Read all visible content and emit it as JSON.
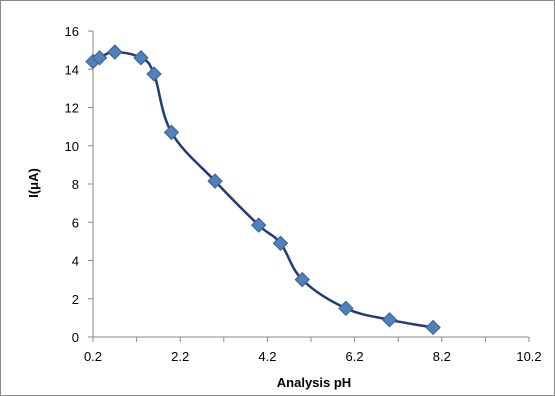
{
  "chart_data": {
    "type": "line",
    "title": "",
    "xlabel": "Analysis pH",
    "ylabel": "I(μA)",
    "xlim": [
      0.2,
      10.2
    ],
    "ylim": [
      0,
      16
    ],
    "xticks": [
      "0.2",
      "2.2",
      "4.2",
      "6.2",
      "8.2",
      "10.2"
    ],
    "yticks": [
      "0",
      "2",
      "4",
      "6",
      "8",
      "10",
      "12",
      "14",
      "16"
    ],
    "grid": false,
    "legend": "none",
    "series": [
      {
        "marker": "diamond",
        "smooth": true,
        "color": "#1f3d7a",
        "marker_color": "#4f81bd",
        "points": [
          {
            "x": 0.2,
            "y": 14.4
          },
          {
            "x": 0.35,
            "y": 14.6
          },
          {
            "x": 0.7,
            "y": 14.9
          },
          {
            "x": 1.3,
            "y": 14.6
          },
          {
            "x": 1.6,
            "y": 13.75
          },
          {
            "x": 2.0,
            "y": 10.7
          },
          {
            "x": 3.0,
            "y": 8.15
          },
          {
            "x": 4.0,
            "y": 5.85
          },
          {
            "x": 4.5,
            "y": 4.9
          },
          {
            "x": 5.0,
            "y": 3.0
          },
          {
            "x": 6.0,
            "y": 1.5
          },
          {
            "x": 7.0,
            "y": 0.9
          },
          {
            "x": 8.0,
            "y": 0.5
          }
        ]
      }
    ]
  }
}
